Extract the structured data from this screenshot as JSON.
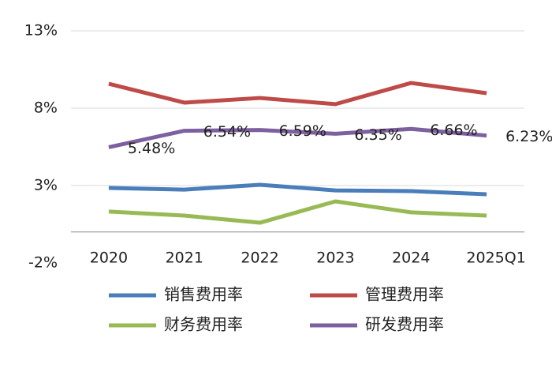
{
  "chart_data": {
    "type": "line",
    "categories": [
      "2020",
      "2021",
      "2022",
      "2023",
      "2024",
      "2025Q1"
    ],
    "series": [
      {
        "name": "销售费用率",
        "color": "#4a7ebb",
        "values": [
          2.85,
          2.74,
          3.05,
          2.69,
          2.64,
          2.44
        ]
      },
      {
        "name": "管理费用率",
        "color": "#be4b48",
        "values": [
          9.58,
          8.36,
          8.66,
          8.26,
          9.63,
          8.97
        ]
      },
      {
        "name": "财务费用率",
        "color": "#98b954",
        "values": [
          1.32,
          1.06,
          0.6,
          1.98,
          1.27,
          1.06
        ]
      },
      {
        "name": "研发费用率",
        "color": "#7d60a0",
        "values": [
          5.48,
          6.54,
          6.59,
          6.35,
          6.66,
          6.23
        ],
        "value_labels": [
          "5.48%",
          "6.54%",
          "6.59%",
          "6.35%",
          "6.66%",
          "6.23%"
        ]
      }
    ],
    "ylim": [
      -2,
      13
    ],
    "yticks": [
      {
        "value": -2,
        "label": "-2%"
      },
      {
        "value": 3,
        "label": "3%"
      },
      {
        "value": 8,
        "label": "8%"
      },
      {
        "value": 13,
        "label": "13%"
      }
    ],
    "grid": true
  }
}
